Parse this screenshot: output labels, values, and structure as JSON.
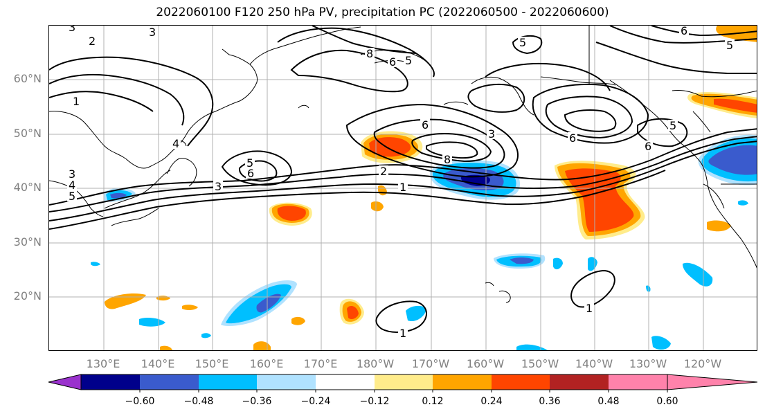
{
  "title": "2022060100 F120 250 hPa PV, precipitation PC (2022060500 - 2022060600)",
  "lat_labels": [
    "20°N",
    "30°N",
    "40°N",
    "50°N",
    "60°N"
  ],
  "lon_labels": [
    "130°E",
    "140°E",
    "150°E",
    "160°E",
    "170°E",
    "180°W",
    "170°W",
    "160°W",
    "150°W",
    "140°W",
    "130°W",
    "120°W"
  ],
  "colorbar": {
    "ticks": [
      "−0.60",
      "−0.48",
      "−0.36",
      "−0.24",
      "−0.12",
      "0.12",
      "0.24",
      "0.36",
      "0.48",
      "0.60"
    ],
    "colors": [
      "#9a32cd",
      "#00008b",
      "#3a5bcd",
      "#00bfff",
      "#b0e2ff",
      "#ffffff",
      "#ffec8b",
      "#ffa500",
      "#ff4500",
      "#b22222",
      "#ff82ab"
    ]
  },
  "contour_labels": [
    {
      "id": "c1",
      "text": "3"
    },
    {
      "id": "c2",
      "text": "2"
    },
    {
      "id": "c3",
      "text": "3"
    },
    {
      "id": "c4",
      "text": "1"
    },
    {
      "id": "c5",
      "text": "5"
    },
    {
      "id": "c6",
      "text": "6"
    },
    {
      "id": "c7",
      "text": "3"
    },
    {
      "id": "c8",
      "text": "4"
    },
    {
      "id": "c9",
      "text": "5"
    },
    {
      "id": "c10",
      "text": "3"
    },
    {
      "id": "c11",
      "text": "4"
    },
    {
      "id": "c12",
      "text": "6"
    },
    {
      "id": "c13",
      "text": "8"
    },
    {
      "id": "c14",
      "text": "6"
    },
    {
      "id": "c15",
      "text": "5"
    },
    {
      "id": "c16",
      "text": "6"
    },
    {
      "id": "c17",
      "text": "8"
    },
    {
      "id": "c18",
      "text": "3"
    },
    {
      "id": "c19",
      "text": "2"
    },
    {
      "id": "c20",
      "text": "1"
    },
    {
      "id": "c21",
      "text": "5"
    },
    {
      "id": "c22",
      "text": "6"
    },
    {
      "id": "c23",
      "text": "6"
    },
    {
      "id": "c24",
      "text": "5"
    },
    {
      "id": "c25",
      "text": "5"
    },
    {
      "id": "c26",
      "text": "1"
    },
    {
      "id": "c27",
      "text": "1"
    }
  ]
}
